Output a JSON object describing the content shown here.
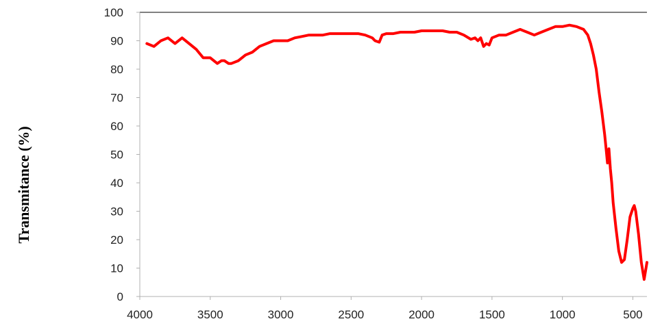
{
  "chart_data": {
    "type": "line",
    "title": "",
    "xlabel": "",
    "ylabel": "Transmitance (%)",
    "xlim": [
      4000,
      400
    ],
    "ylim": [
      0,
      100
    ],
    "x_reversed": true,
    "grid": false,
    "legend": "none",
    "x_ticks": [
      "4000",
      "3500",
      "3000",
      "2500",
      "2000",
      "1500",
      "1000",
      "500"
    ],
    "y_ticks": [
      "0",
      "10",
      "20",
      "30",
      "40",
      "50",
      "60",
      "70",
      "80",
      "90",
      "100"
    ],
    "colors": {
      "series": "#ff0000",
      "axis": "#000000"
    },
    "series": [
      {
        "name": "",
        "x": [
          3950,
          3900,
          3850,
          3800,
          3750,
          3700,
          3650,
          3600,
          3550,
          3500,
          3450,
          3420,
          3400,
          3370,
          3350,
          3300,
          3250,
          3200,
          3150,
          3100,
          3050,
          3000,
          2950,
          2900,
          2850,
          2800,
          2750,
          2700,
          2650,
          2600,
          2550,
          2500,
          2450,
          2400,
          2350,
          2330,
          2300,
          2280,
          2250,
          2200,
          2150,
          2100,
          2050,
          2000,
          1950,
          1900,
          1850,
          1800,
          1750,
          1700,
          1650,
          1620,
          1600,
          1580,
          1560,
          1540,
          1520,
          1500,
          1450,
          1400,
          1350,
          1300,
          1250,
          1200,
          1150,
          1100,
          1050,
          1000,
          950,
          900,
          850,
          820,
          800,
          780,
          760,
          740,
          720,
          700,
          690,
          680,
          670,
          660,
          650,
          640,
          620,
          600,
          580,
          560,
          540,
          520,
          500,
          490,
          480,
          460,
          440,
          420,
          400
        ],
        "y": [
          89,
          88,
          90,
          91,
          89,
          91,
          89,
          87,
          84,
          84,
          82,
          83,
          83,
          82,
          82,
          83,
          85,
          86,
          88,
          89,
          90,
          90,
          90,
          91,
          91.5,
          92,
          92,
          92,
          92.5,
          92.5,
          92.5,
          92.5,
          92.5,
          92,
          91,
          90,
          89.5,
          92,
          92.5,
          92.5,
          93,
          93,
          93,
          93.5,
          93.5,
          93.5,
          93.5,
          93,
          93,
          92,
          90.5,
          91,
          90,
          91,
          88,
          89,
          88.5,
          91,
          92,
          92,
          93,
          94,
          93,
          92,
          93,
          94,
          95,
          95,
          95.5,
          95,
          94,
          92,
          89,
          85,
          80,
          72,
          65,
          57,
          52,
          47,
          52,
          45,
          40,
          33,
          24,
          16,
          12,
          13,
          20,
          28,
          31,
          32,
          30,
          22,
          12,
          6,
          12
        ]
      }
    ]
  }
}
